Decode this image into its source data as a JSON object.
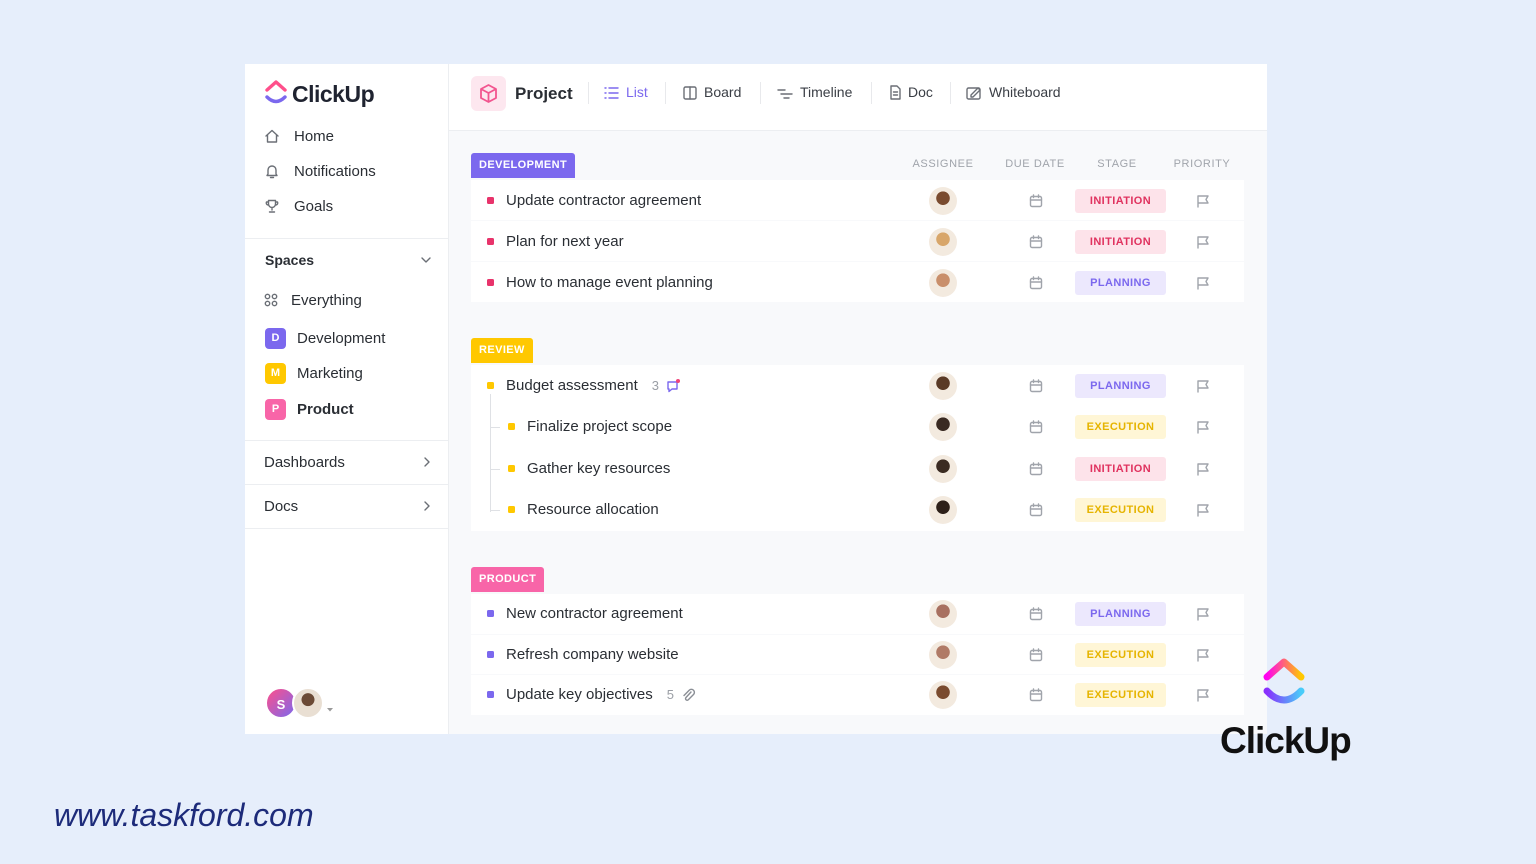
{
  "sidebar": {
    "logo": "ClickUp",
    "nav": [
      "Home",
      "Notifications",
      "Goals"
    ],
    "spaces_title": "Spaces",
    "spaces": [
      {
        "label": "Everything"
      },
      {
        "badge": "D",
        "label": "Development"
      },
      {
        "badge": "M",
        "label": "Marketing"
      },
      {
        "badge": "P",
        "label": "Product"
      }
    ],
    "sections": [
      "Dashboards",
      "Docs"
    ],
    "user_initial": "S"
  },
  "header": {
    "title": "Project",
    "tabs": [
      "List",
      "Board",
      "Timeline",
      "Doc",
      "Whiteboard"
    ]
  },
  "columns": [
    "ASSIGNEE",
    "DUE DATE",
    "STAGE",
    "PRIORITY"
  ],
  "groups": [
    {
      "name": "DEVELOPMENT",
      "tasks": [
        {
          "name": "Update contractor agreement",
          "stage": "INITIATION"
        },
        {
          "name": "Plan for next year",
          "stage": "INITIATION"
        },
        {
          "name": "How to manage event planning",
          "stage": "PLANNING"
        }
      ]
    },
    {
      "name": "REVIEW",
      "tasks": [
        {
          "name": "Budget assessment",
          "count": 3,
          "stage": "PLANNING",
          "subtasks": [
            {
              "name": "Finalize project scope",
              "stage": "EXECUTION"
            },
            {
              "name": "Gather key resources",
              "stage": "INITIATION"
            },
            {
              "name": "Resource allocation",
              "stage": "EXECUTION"
            }
          ]
        }
      ]
    },
    {
      "name": "PRODUCT",
      "tasks": [
        {
          "name": "New contractor agreement",
          "stage": "PLANNING"
        },
        {
          "name": "Refresh company website",
          "stage": "EXECUTION"
        },
        {
          "name": "Update key objectives",
          "count": 5,
          "stage": "EXECUTION"
        }
      ]
    }
  ],
  "brand": "ClickUp",
  "footer_url": "www.taskford.com"
}
